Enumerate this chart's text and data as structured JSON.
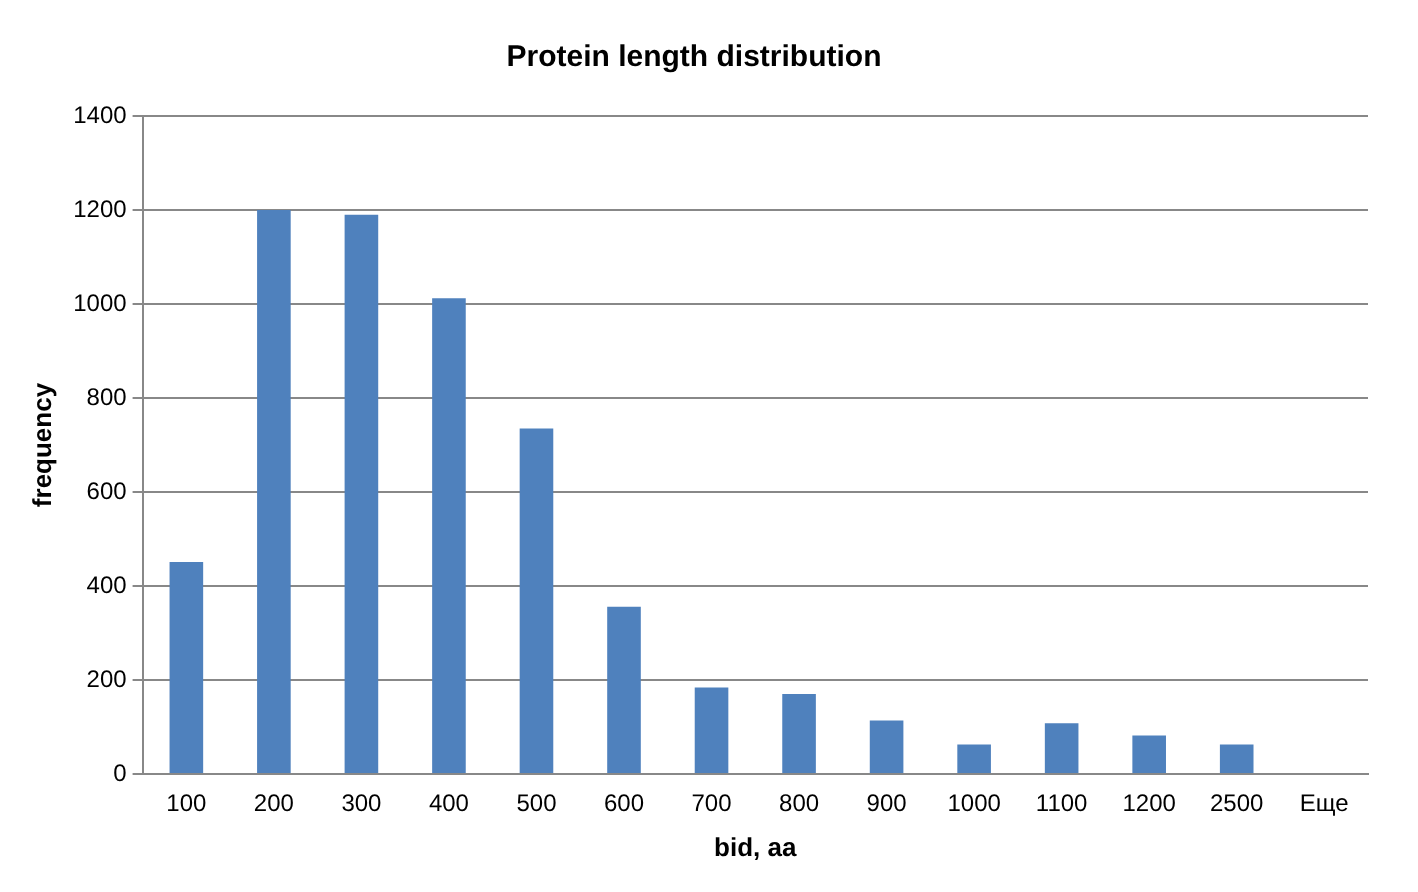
{
  "chart_data": {
    "type": "bar",
    "title": "Protein length distribution",
    "xlabel": "bid, aa",
    "ylabel": "frequency",
    "categories": [
      "100",
      "200",
      "300",
      "400",
      "500",
      "600",
      "700",
      "800",
      "900",
      "1000",
      "1100",
      "1200",
      "2500",
      "Еще"
    ],
    "values": [
      451,
      1200,
      1190,
      1012,
      735,
      356,
      184,
      170,
      114,
      63,
      108,
      82,
      63,
      0
    ],
    "color": "#4f81bd",
    "ylim": [
      0,
      1400
    ],
    "yticks": [
      0,
      200,
      400,
      600,
      800,
      1000,
      1200,
      1400
    ],
    "grid": "y",
    "legend": false
  }
}
